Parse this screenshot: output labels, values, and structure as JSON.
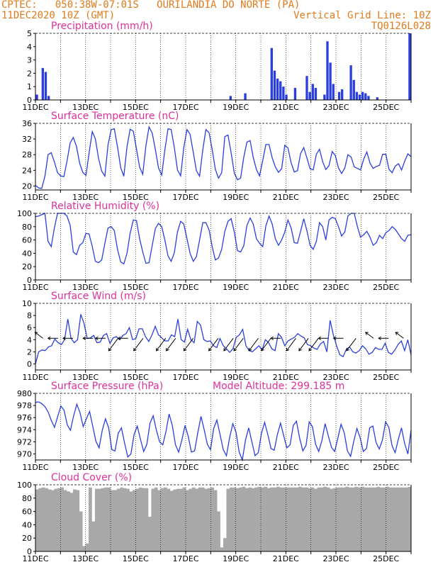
{
  "header": {
    "line1_left": "CPTEC:   050:38W-07:01S   OURILANDIA DO NORTE (PA)",
    "line2_left": "11DEC2020 10Z (GMT)",
    "line2_right": "Vertical Grid Line: 10Z",
    "line3_right": "TQ0126L028"
  },
  "colors": {
    "header": "#e07a1a",
    "panel_title": "#e0309a",
    "line_series": "#2b3fe0",
    "bar_series": "#2b3fe0",
    "cloud_fill": "#a8a8a8",
    "grid": "#000000"
  },
  "chart_data": [
    {
      "id": "precip",
      "type": "bar",
      "title": "Precipitation (mm/h)",
      "ylim": [
        0,
        5
      ],
      "yticks": [
        0,
        1,
        2,
        3,
        4,
        5
      ],
      "x_tick_labels": [
        "11DEC",
        "13DEC",
        "15DEC",
        "17DEC",
        "19DEC",
        "21DEC",
        "23DEC",
        "25DEC"
      ],
      "day_values": [
        0.4,
        0,
        2.4,
        2.1,
        0.3,
        0,
        0,
        0,
        0,
        0,
        0,
        0,
        0,
        0,
        0,
        0,
        0,
        0,
        0,
        0,
        0,
        0,
        0,
        0,
        0,
        0,
        0,
        0,
        0,
        0,
        0,
        0,
        0,
        0,
        0,
        0,
        0,
        0,
        0,
        0,
        0,
        0,
        0,
        0,
        0,
        0,
        0,
        0,
        0,
        0,
        0,
        0,
        0,
        0,
        0,
        0,
        0,
        0,
        0,
        0,
        0,
        0,
        0,
        0,
        0,
        0,
        0.3,
        0,
        0,
        0,
        0,
        0.5,
        0,
        0,
        0,
        0,
        0,
        0,
        0,
        0,
        3.9,
        2.2,
        1.6,
        1.4,
        1.0,
        0.4,
        0,
        0,
        0.9,
        0,
        0,
        0,
        1.8,
        0.6,
        1.2,
        0.9,
        0,
        0,
        0.4,
        4.4,
        2.8,
        1.2,
        0,
        0.6,
        0.8,
        0,
        0,
        2.6,
        1.5,
        0.6,
        0.4,
        0.6,
        0.5,
        0.3,
        0,
        0,
        0.2,
        0,
        0,
        0,
        0,
        0,
        0,
        0,
        0,
        0,
        0,
        5.0
      ]
    },
    {
      "id": "temp",
      "type": "line",
      "title": "Surface Temperature (nC)",
      "ylim": [
        19,
        36
      ],
      "yticks": [
        20,
        24,
        28,
        32,
        36
      ],
      "x_tick_labels": [
        "11DEC",
        "13DEC",
        "15DEC",
        "17DEC",
        "19DEC",
        "21DEC",
        "23DEC",
        "25DEC"
      ],
      "hours_per_point": 3,
      "values": [
        20.2,
        19.5,
        19.4,
        22.5,
        28.0,
        28.5,
        26.2,
        23.4,
        22.6,
        22.4,
        26.3,
        31.0,
        32.4,
        30.1,
        25.8,
        23.5,
        22.7,
        28.4,
        33.9,
        32.0,
        27.0,
        23.8,
        22.5,
        30.5,
        34.4,
        34.6,
        30.0,
        24.7,
        22.5,
        30.0,
        34.5,
        34.0,
        29.5,
        24.8,
        23.0,
        30.3,
        35.1,
        33.5,
        29.3,
        24.6,
        22.8,
        29.2,
        34.6,
        34.4,
        29.8,
        24.1,
        22.6,
        29.8,
        34.4,
        33.2,
        28.6,
        23.9,
        22.5,
        29.2,
        34.4,
        33.6,
        29.3,
        24.2,
        22.0,
        23.4,
        32.6,
        33.0,
        28.5,
        23.3,
        21.6,
        22.0,
        27.3,
        31.2,
        31.6,
        27.3,
        24.2,
        22.6,
        26.5,
        30.6,
        30.6,
        27.2,
        24.9,
        23.5,
        24.4,
        30.4,
        29.7,
        25.9,
        23.6,
        23.9,
        28.3,
        29.8,
        27.2,
        24.4,
        24.1,
        28.1,
        29.4,
        26.2,
        24.2,
        25.2,
        28.8,
        27.8,
        24.6,
        23.2,
        24.6,
        28.0,
        27.4,
        24.9,
        24.5,
        24.1,
        26.9,
        28.7,
        25.8,
        24.5,
        25.0,
        25.3,
        28.1,
        28.1,
        24.3,
        23.4,
        25.1,
        25.7,
        24.1,
        26.4,
        28.2,
        27.5
      ]
    },
    {
      "id": "rh",
      "type": "line",
      "title": "Relative Humidity (%)",
      "ylim": [
        0,
        100
      ],
      "yticks": [
        0,
        20,
        40,
        60,
        80,
        100
      ],
      "x_tick_labels": [
        "11DEC",
        "13DEC",
        "15DEC",
        "17DEC",
        "19DEC",
        "21DEC",
        "23DEC",
        "25DEC"
      ],
      "hours_per_point": 3,
      "values": [
        95,
        96,
        98,
        100,
        58,
        50,
        78,
        100,
        100,
        100,
        96,
        82,
        42,
        38,
        52,
        56,
        70,
        69,
        50,
        28,
        26,
        30,
        55,
        78,
        80,
        74,
        46,
        27,
        24,
        40,
        70,
        90,
        89,
        62,
        42,
        25,
        26,
        52,
        77,
        85,
        80,
        60,
        36,
        28,
        41,
        72,
        88,
        84,
        62,
        40,
        28,
        35,
        60,
        86,
        86,
        75,
        50,
        30,
        33,
        46,
        73,
        88,
        92,
        72,
        44,
        42,
        51,
        82,
        93,
        84,
        62,
        55,
        50,
        81,
        96,
        84,
        62,
        52,
        60,
        72,
        90,
        78,
        56,
        55,
        73,
        92,
        74,
        52,
        46,
        58,
        86,
        80,
        60,
        90,
        94,
        92,
        80,
        66,
        72,
        96,
        100,
        100,
        80,
        64,
        68,
        73,
        64,
        52,
        56,
        67,
        62,
        71,
        74,
        80,
        76,
        69,
        62,
        58,
        67,
        68
      ]
    },
    {
      "id": "wind",
      "type": "line",
      "title": "Surface Wind (m/s)",
      "ylim": [
        -1,
        10
      ],
      "yticks": [
        0,
        2,
        4,
        6,
        8,
        10
      ],
      "x_tick_labels": [
        "11DEC",
        "13DEC",
        "15DEC",
        "17DEC",
        "19DEC",
        "21DEC",
        "23DEC",
        "25DEC"
      ],
      "hours_per_point": 3,
      "values": [
        0.0,
        2.0,
        2.3,
        2.2,
        2.8,
        3.0,
        4.1,
        3.5,
        3.2,
        4.0,
        7.4,
        4.2,
        3.5,
        4.0,
        8.2,
        6.7,
        4.2,
        4.3,
        4.7,
        3.5,
        3.6,
        4.7,
        5.0,
        3.4,
        4.3,
        4.5,
        4.0,
        4.7,
        5.0,
        6.0,
        4.0,
        4.2,
        5.8,
        5.8,
        4.5,
        3.7,
        4.8,
        6.2,
        4.8,
        4.3,
        3.8,
        3.8,
        4.8,
        4.5,
        7.4,
        4.0,
        3.6,
        5.7,
        4.0,
        3.5,
        7.0,
        6.4,
        4.0,
        3.7,
        3.8,
        3.0,
        2.7,
        4.2,
        3.0,
        2.5,
        1.9,
        2.5,
        4.4,
        4.8,
        5.7,
        3.0,
        2.2,
        2.0,
        2.5,
        3.0,
        2.3,
        4.0,
        3.5,
        2.5,
        2.2,
        5.0,
        4.4,
        3.0,
        3.8,
        4.1,
        4.4,
        5.0,
        4.6,
        4.3,
        3.2,
        3.0,
        2.6,
        2.4,
        3.3,
        3.7,
        2.0,
        7.2,
        4.8,
        3.0,
        1.5,
        1.2,
        2.4,
        2.8,
        2.0,
        1.8,
        2.2,
        3.0,
        2.5,
        1.6,
        1.9,
        2.7,
        2.4,
        2.4,
        3.4,
        1.9,
        1.6,
        2.3,
        3.2,
        3.8,
        2.2,
        4.0,
        1.5
      ]
    },
    {
      "id": "pressure",
      "type": "line",
      "title": "Surface Pressure (hPa)",
      "annotation": "Model Altitude: 299.185 m",
      "ylim": [
        969,
        980
      ],
      "yticks": [
        970,
        972,
        974,
        976,
        978,
        980
      ],
      "x_tick_labels": [
        "11DEC",
        "13DEC",
        "15DEC",
        "17DEC",
        "19DEC",
        "21DEC",
        "23DEC",
        "25DEC"
      ],
      "hours_per_point": 3,
      "values": [
        978.5,
        978.6,
        978.3,
        977.8,
        976.9,
        975.5,
        974.4,
        976.2,
        977.9,
        977.2,
        974.8,
        973.9,
        976.3,
        978.2,
        976.8,
        974.5,
        975.8,
        977.0,
        974.6,
        972.1,
        971.0,
        973.9,
        975.8,
        974.3,
        970.7,
        970.5,
        973.4,
        974.3,
        971.8,
        969.5,
        970.0,
        973.2,
        974.6,
        972.4,
        970.4,
        971.6,
        975.1,
        976.3,
        973.9,
        972.0,
        971.5,
        973.7,
        976.6,
        974.7,
        971.5,
        970.3,
        972.3,
        974.7,
        972.9,
        970.3,
        970.5,
        973.5,
        976.2,
        974.0,
        971.6,
        970.7,
        974.2,
        975.6,
        973.2,
        970.7,
        969.7,
        972.7,
        975.0,
        973.6,
        970.3,
        969.0,
        972.3,
        974.3,
        972.0,
        969.7,
        970.2,
        973.4,
        975.2,
        973.2,
        970.9,
        970.6,
        973.2,
        975.1,
        973.0,
        971.0,
        971.5,
        974.7,
        975.4,
        972.6,
        970.5,
        971.4,
        975.3,
        974.5,
        971.6,
        970.4,
        972.2,
        975.0,
        973.0,
        971.1,
        970.4,
        972.6,
        974.9,
        973.5,
        970.5,
        969.6,
        972.1,
        974.2,
        972.7,
        970.4,
        970.9,
        974.3,
        974.6,
        971.9,
        970.8,
        972.3,
        975.3,
        974.4,
        971.4,
        970.2,
        972.4,
        974.3,
        971.7,
        970.0,
        973.9
      ]
    },
    {
      "id": "cloud",
      "type": "area",
      "title": "Cloud Cover (%)",
      "ylim": [
        0,
        100
      ],
      "yticks": [
        0,
        20,
        40,
        60,
        80,
        100
      ],
      "x_tick_labels": [
        "11DEC",
        "13DEC",
        "15DEC",
        "17DEC",
        "19DEC",
        "21DEC",
        "23DEC",
        "25DEC"
      ],
      "hours_per_point": 3,
      "values": [
        93,
        95,
        96,
        95,
        93,
        92,
        94,
        95,
        96,
        92,
        90,
        88,
        93,
        92,
        60,
        8,
        12,
        96,
        45,
        94,
        94,
        95,
        96,
        96,
        92,
        92,
        94,
        96,
        95,
        94,
        90,
        92,
        94,
        96,
        95,
        95,
        52,
        94,
        96,
        92,
        95,
        96,
        94,
        91,
        93,
        94,
        94,
        96,
        92,
        94,
        96,
        94,
        96,
        96,
        94,
        95,
        96,
        92,
        60,
        6,
        20,
        94,
        96,
        96,
        95,
        96,
        97,
        95,
        96,
        95,
        96,
        97,
        96,
        97,
        95,
        96,
        96,
        97,
        96,
        96,
        96,
        96,
        96,
        96,
        97,
        96,
        96,
        95,
        96,
        94,
        96,
        96,
        97,
        96,
        94,
        95,
        96,
        96,
        96,
        97,
        96,
        96,
        97,
        96,
        97,
        96,
        96,
        96,
        96,
        97,
        96,
        96,
        97,
        96,
        96,
        96,
        96,
        96,
        96,
        97
      ]
    }
  ],
  "wind_barbs": [
    {
      "dir": "NW",
      "x_day": 0.3
    },
    {
      "dir": "W",
      "x_day": 0.9
    },
    {
      "dir": "W",
      "x_day": 1.5
    },
    {
      "dir": "W",
      "x_day": 2.3
    },
    {
      "dir": "W",
      "x_day": 2.8
    },
    {
      "dir": "SW",
      "x_day": 3.3
    },
    {
      "dir": "W",
      "x_day": 3.7
    },
    {
      "dir": "SW",
      "x_day": 4.3
    },
    {
      "dir": "SW",
      "x_day": 5.2
    },
    {
      "dir": "SW",
      "x_day": 5.6
    },
    {
      "dir": "SW",
      "x_day": 6.3
    },
    {
      "dir": "SW",
      "x_day": 7.3
    },
    {
      "dir": "SW",
      "x_day": 7.9
    },
    {
      "dir": "SW",
      "x_day": 8.3
    },
    {
      "dir": "SW",
      "x_day": 8.9
    },
    {
      "dir": "SW",
      "x_day": 9.4
    },
    {
      "dir": "W",
      "x_day": 9.8
    },
    {
      "dir": "SW",
      "x_day": 10.4
    },
    {
      "dir": "SW",
      "x_day": 10.9
    },
    {
      "dir": "SW",
      "x_day": 11.3
    },
    {
      "dir": "W",
      "x_day": 11.7
    },
    {
      "dir": "W",
      "x_day": 12.3
    },
    {
      "dir": "SW",
      "x_day": 12.8
    },
    {
      "dir": "NW",
      "x_day": 13.5
    },
    {
      "dir": "W",
      "x_day": 14.1
    },
    {
      "dir": "NW",
      "x_day": 14.7
    }
  ]
}
